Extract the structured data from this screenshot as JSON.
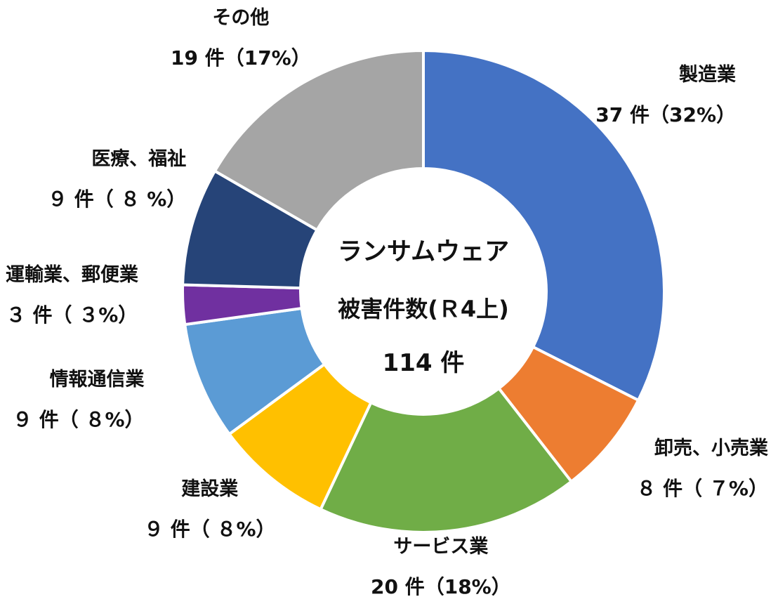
{
  "chart_data": {
    "type": "donut",
    "title_lines": [
      "ランサムウェア",
      "被害件数(Ｒ4上)",
      "114 件"
    ],
    "total": 114,
    "categories": [
      "製造業",
      "卸売、小売業",
      "サービス業",
      "建設業",
      "情報通信業",
      "運輸業、郵便業",
      "医療、福祉",
      "その他"
    ],
    "values": [
      37,
      8,
      20,
      9,
      9,
      3,
      9,
      19
    ],
    "count_labels": [
      "37 件（32%）",
      "８ 件（ ７%）",
      "20 件（18%）",
      "９ 件（ ８%）",
      "９ 件（ ８%）",
      "３ 件（ ３%）",
      "９ 件（ ８ %）",
      "19 件（17%）"
    ],
    "colors": [
      "#4472C4",
      "#ED7D31",
      "#70AD47",
      "#FFC000",
      "#5B9BD5",
      "#7030A0",
      "#264478",
      "#A5A5A5"
    ]
  }
}
